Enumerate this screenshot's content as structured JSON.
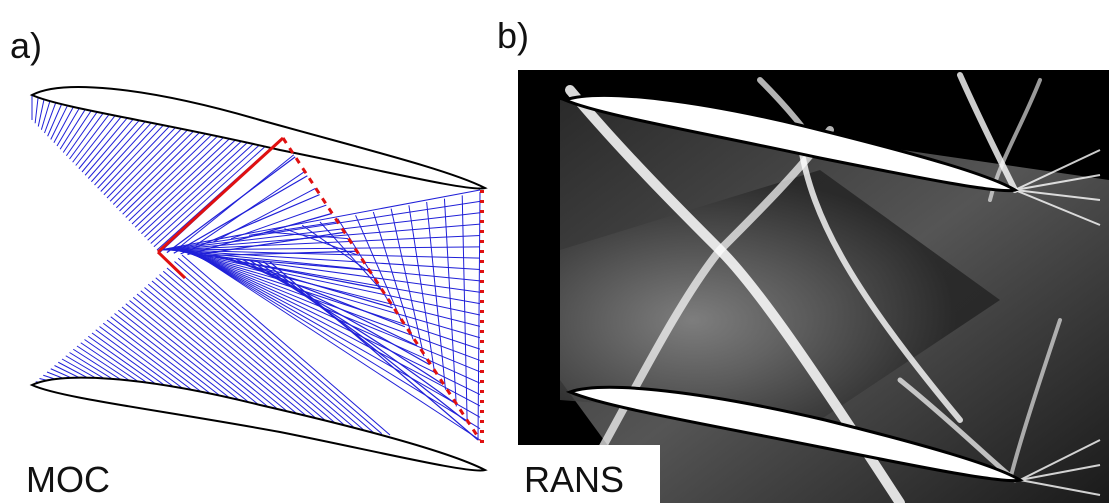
{
  "panels": [
    {
      "label": "a)",
      "caption": "MOC"
    },
    {
      "label": "b)",
      "caption": "RANS"
    }
  ]
}
